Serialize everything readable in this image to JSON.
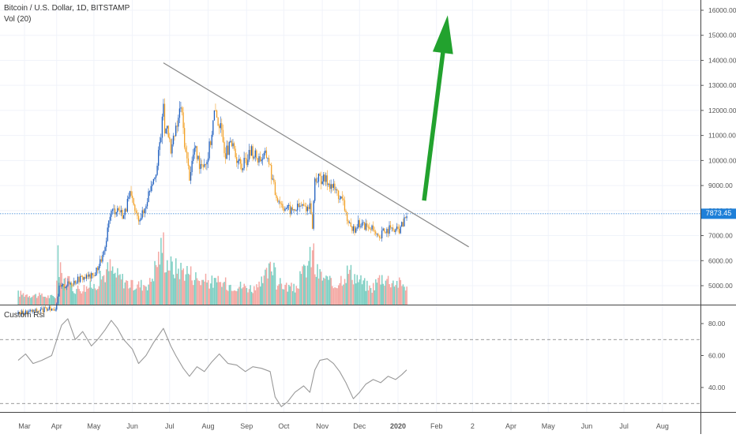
{
  "header": {
    "symbol_line": "Bitcoin / U.S. Dollar, 1D, BITSTAMP",
    "volume_line": "Vol (20)",
    "rsi_title": "Custom Rsi"
  },
  "colors": {
    "up": "#1f5fbf",
    "down": "#f2a127",
    "vol_up": "#7fcfc3",
    "vol_down": "#f4a9a4",
    "price_line": "#4a90d9",
    "price_label_bg": "#1e7fd8",
    "trendline": "#888888",
    "arrow": "#22a22e",
    "rsi_line": "#999999",
    "grid": "#f0f3fa",
    "axis_text": "#555555"
  },
  "chart_data": [
    {
      "type": "candlestick",
      "title": "Bitcoin / U.S. Dollar, 1D, BITSTAMP",
      "x_ticks": [
        "Mar",
        "Apr",
        "May",
        "Jun",
        "Jul",
        "Aug",
        "Sep",
        "Oct",
        "Nov",
        "Dec",
        "2020",
        "Feb",
        "2",
        "Apr",
        "May",
        "Jun",
        "Jul",
        "Aug"
      ],
      "y_ticks": [
        "5000.00",
        "6000.00",
        "7000.00",
        "8000.00",
        "9000.00",
        "10000.00",
        "11000.00",
        "12000.00",
        "13000.00",
        "14000.00",
        "15000.00",
        "16000.00"
      ],
      "ylim": [
        4200,
        16300
      ],
      "last_price": "7873.45",
      "close_path": [
        [
          "2019-03-01",
          3900
        ],
        [
          "2019-03-31",
          4100
        ],
        [
          "2019-04-03",
          4900
        ],
        [
          "2019-04-20",
          5300
        ],
        [
          "2019-05-01",
          5400
        ],
        [
          "2019-05-10",
          6400
        ],
        [
          "2019-05-14",
          7900
        ],
        [
          "2019-05-20",
          8100
        ],
        [
          "2019-05-25",
          7800
        ],
        [
          "2019-05-30",
          8600
        ],
        [
          "2019-06-05",
          7700
        ],
        [
          "2019-06-10",
          7900
        ],
        [
          "2019-06-16",
          9100
        ],
        [
          "2019-06-21",
          9800
        ],
        [
          "2019-06-25",
          11500
        ],
        [
          "2019-06-26",
          12400
        ],
        [
          "2019-06-27",
          11000
        ],
        [
          "2019-06-29",
          11600
        ],
        [
          "2019-07-02",
          10300
        ],
        [
          "2019-07-07",
          11400
        ],
        [
          "2019-07-10",
          12200
        ],
        [
          "2019-07-14",
          10300
        ],
        [
          "2019-07-17",
          9400
        ],
        [
          "2019-07-21",
          10500
        ],
        [
          "2019-07-25",
          9900
        ],
        [
          "2019-07-31",
          10000
        ],
        [
          "2019-08-03",
          10800
        ],
        [
          "2019-08-06",
          11900
        ],
        [
          "2019-08-10",
          11500
        ],
        [
          "2019-08-15",
          10300
        ],
        [
          "2019-08-20",
          10600
        ],
        [
          "2019-08-28",
          9700
        ],
        [
          "2019-09-05",
          10400
        ],
        [
          "2019-09-10",
          10100
        ],
        [
          "2019-09-18",
          10200
        ],
        [
          "2019-09-24",
          8700
        ],
        [
          "2019-09-30",
          8200
        ],
        [
          "2019-10-07",
          8000
        ],
        [
          "2019-10-15",
          8200
        ],
        [
          "2019-10-22",
          8100
        ],
        [
          "2019-10-24",
          7400
        ],
        [
          "2019-10-26",
          9300
        ],
        [
          "2019-10-30",
          9300
        ],
        [
          "2019-11-05",
          9200
        ],
        [
          "2019-11-12",
          8800
        ],
        [
          "2019-11-18",
          8300
        ],
        [
          "2019-11-22",
          7500
        ],
        [
          "2019-11-25",
          7100
        ],
        [
          "2019-11-29",
          7500
        ],
        [
          "2019-12-05",
          7400
        ],
        [
          "2019-12-10",
          7300
        ],
        [
          "2019-12-17",
          6800
        ],
        [
          "2019-12-20",
          7200
        ],
        [
          "2019-12-25",
          7250
        ],
        [
          "2019-12-31",
          7200
        ],
        [
          "2020-01-03",
          7300
        ],
        [
          "2020-01-06",
          7600
        ],
        [
          "2020-01-08",
          7873
        ]
      ],
      "trendline": {
        "from": [
          "2019-06-26",
          13900
        ],
        "to": [
          "2020-02-27",
          6550
        ]
      },
      "forecast_arrow": {
        "from": [
          "2020-01-22",
          8400
        ],
        "to": [
          "2020-02-10",
          15800
        ]
      }
    },
    {
      "type": "bar",
      "name": "Vol (20)",
      "volume_profile": [
        [
          "2019-03-01",
          0.18
        ],
        [
          "2019-03-31",
          0.12
        ],
        [
          "2019-04-02",
          0.88
        ],
        [
          "2019-04-03",
          0.55
        ],
        [
          "2019-04-15",
          0.25
        ],
        [
          "2019-05-01",
          0.3
        ],
        [
          "2019-05-14",
          0.6
        ],
        [
          "2019-05-17",
          0.5
        ],
        [
          "2019-06-01",
          0.3
        ],
        [
          "2019-06-15",
          0.35
        ],
        [
          "2019-06-26",
          1.0
        ],
        [
          "2019-06-27",
          0.75
        ],
        [
          "2019-07-03",
          0.6
        ],
        [
          "2019-07-15",
          0.55
        ],
        [
          "2019-07-25",
          0.4
        ],
        [
          "2019-08-10",
          0.35
        ],
        [
          "2019-08-28",
          0.3
        ],
        [
          "2019-09-10",
          0.25
        ],
        [
          "2019-09-24",
          0.7
        ],
        [
          "2019-09-25",
          0.35
        ],
        [
          "2019-10-10",
          0.25
        ],
        [
          "2019-10-25",
          0.85
        ],
        [
          "2019-10-26",
          0.55
        ],
        [
          "2019-11-10",
          0.3
        ],
        [
          "2019-11-22",
          0.55
        ],
        [
          "2019-12-10",
          0.25
        ],
        [
          "2019-12-18",
          0.45
        ],
        [
          "2020-01-08",
          0.3
        ]
      ]
    },
    {
      "type": "line",
      "name": "Custom Rsi",
      "y_ticks": [
        "40.00",
        "60.00",
        "80.00"
      ],
      "ylim": [
        24,
        91
      ],
      "bands": [
        70,
        30
      ],
      "points": [
        [
          "2019-03-01",
          57
        ],
        [
          "2019-03-07",
          61
        ],
        [
          "2019-03-13",
          55
        ],
        [
          "2019-03-20",
          57
        ],
        [
          "2019-03-28",
          60
        ],
        [
          "2019-04-02",
          72
        ],
        [
          "2019-04-05",
          79
        ],
        [
          "2019-04-10",
          83
        ],
        [
          "2019-04-16",
          70
        ],
        [
          "2019-04-22",
          75
        ],
        [
          "2019-04-29",
          66
        ],
        [
          "2019-05-04",
          70
        ],
        [
          "2019-05-10",
          76
        ],
        [
          "2019-05-15",
          82
        ],
        [
          "2019-05-20",
          77
        ],
        [
          "2019-05-25",
          70
        ],
        [
          "2019-06-01",
          64
        ],
        [
          "2019-06-06",
          55
        ],
        [
          "2019-06-12",
          60
        ],
        [
          "2019-06-18",
          68
        ],
        [
          "2019-06-26",
          77
        ],
        [
          "2019-07-02",
          66
        ],
        [
          "2019-07-06",
          60
        ],
        [
          "2019-07-12",
          52
        ],
        [
          "2019-07-17",
          47
        ],
        [
          "2019-07-23",
          53
        ],
        [
          "2019-07-29",
          50
        ],
        [
          "2019-08-04",
          56
        ],
        [
          "2019-08-10",
          61
        ],
        [
          "2019-08-17",
          55
        ],
        [
          "2019-08-24",
          54
        ],
        [
          "2019-08-31",
          50
        ],
        [
          "2019-09-06",
          53
        ],
        [
          "2019-09-13",
          52
        ],
        [
          "2019-09-20",
          50
        ],
        [
          "2019-09-24",
          34
        ],
        [
          "2019-09-29",
          28
        ],
        [
          "2019-10-04",
          31
        ],
        [
          "2019-10-10",
          37
        ],
        [
          "2019-10-17",
          41
        ],
        [
          "2019-10-22",
          37
        ],
        [
          "2019-10-26",
          51
        ],
        [
          "2019-10-30",
          57
        ],
        [
          "2019-11-05",
          58
        ],
        [
          "2019-11-10",
          55
        ],
        [
          "2019-11-15",
          50
        ],
        [
          "2019-11-20",
          43
        ],
        [
          "2019-11-26",
          33
        ],
        [
          "2019-12-01",
          37
        ],
        [
          "2019-12-06",
          42
        ],
        [
          "2019-12-12",
          45
        ],
        [
          "2019-12-18",
          43
        ],
        [
          "2019-12-24",
          47
        ],
        [
          "2019-12-30",
          45
        ],
        [
          "2020-01-04",
          48
        ],
        [
          "2020-01-08",
          51
        ]
      ]
    }
  ]
}
